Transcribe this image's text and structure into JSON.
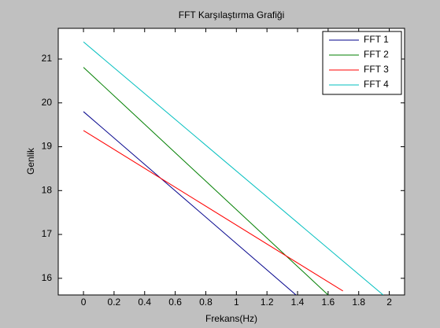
{
  "chart_data": {
    "type": "line",
    "title": "FFT Karşılaştırma Grafiği",
    "x_label": "Frekans(Hz)",
    "y_label": "Genlik",
    "xlim": [
      -0.165,
      2.1
    ],
    "ylim": [
      15.62,
      21.7
    ],
    "xticks": [
      0,
      0.2,
      0.4,
      0.6,
      0.8,
      1,
      1.2,
      1.4,
      1.6,
      1.8,
      2
    ],
    "yticks": [
      16,
      17,
      18,
      19,
      20,
      21
    ],
    "legend": "top-right",
    "series": [
      {
        "name": "FFT 1",
        "color": "#00008b",
        "x": [
          0,
          1.39
        ],
        "values": [
          19.8,
          15.62
        ]
      },
      {
        "name": "FFT 2",
        "color": "#007f00",
        "x": [
          0,
          1.6
        ],
        "values": [
          20.81,
          15.62
        ]
      },
      {
        "name": "FFT 3",
        "color": "#ff0000",
        "x": [
          0,
          1.697
        ],
        "values": [
          19.37,
          15.71
        ]
      },
      {
        "name": "FFT 4",
        "color": "#00bfbf",
        "x": [
          0,
          1.96
        ],
        "values": [
          21.39,
          15.62
        ]
      }
    ]
  }
}
